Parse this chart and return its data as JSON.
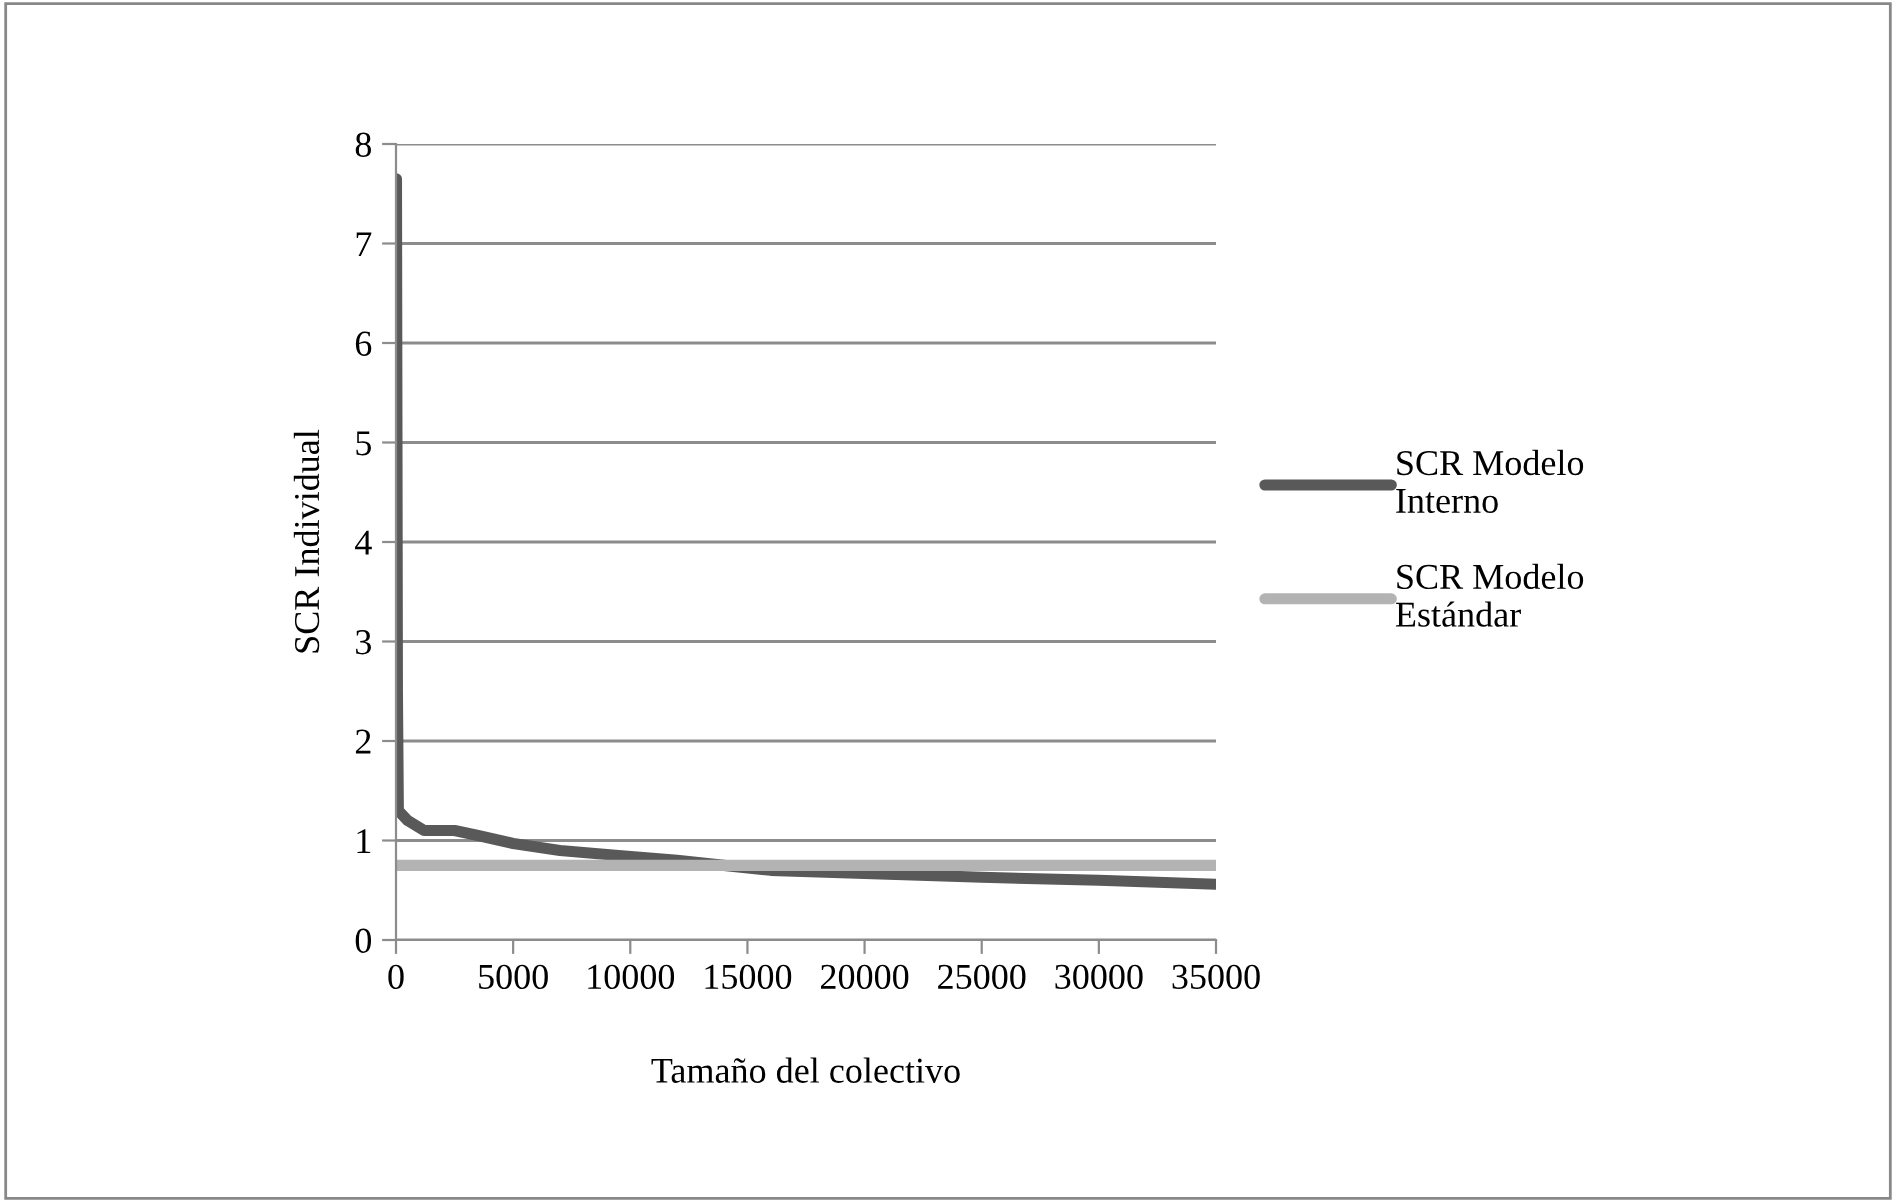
{
  "chart_data": {
    "type": "line",
    "xlabel": "Tamaño del colectivo",
    "ylabel": "SCR Individual",
    "series": [
      {
        "name": "SCR Modelo\nInterno",
        "color": "#595959",
        "x": [
          20,
          60,
          100,
          500,
          1200,
          2500,
          3500,
          5000,
          7000,
          9500,
          12000,
          14000,
          16000,
          20000,
          25000,
          30000,
          35000
        ],
        "values": [
          7.65,
          2.5,
          1.3,
          1.2,
          1.1,
          1.1,
          1.05,
          0.97,
          0.9,
          0.85,
          0.8,
          0.75,
          0.7,
          0.67,
          0.63,
          0.6,
          0.56
        ]
      },
      {
        "name": "SCR Modelo\nEstándar",
        "color": "#b3b3b3",
        "x": [
          0,
          35000
        ],
        "values": [
          0.75,
          0.75
        ]
      }
    ],
    "xlim": [
      0,
      35000
    ],
    "xticks": [
      0,
      5000,
      10000,
      15000,
      20000,
      25000,
      30000,
      35000
    ],
    "ylim": [
      0,
      8
    ],
    "yticks": [
      0,
      1,
      2,
      3,
      4,
      5,
      6,
      7,
      8
    ],
    "grid": "y",
    "legend": "right",
    "line_style": "solid",
    "marker": "none"
  }
}
